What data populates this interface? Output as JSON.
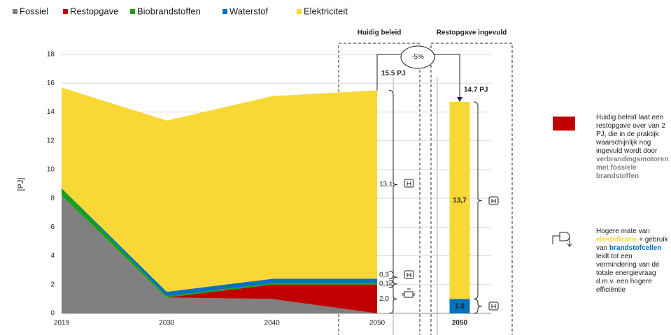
{
  "chart_data": [
    {
      "type": "area",
      "y_label": "[PJ]",
      "categories": [
        "2019",
        "2030",
        "2040",
        "2050"
      ],
      "ylim": [
        0,
        18
      ],
      "yticks": [
        0,
        2,
        4,
        6,
        8,
        10,
        12,
        14,
        16,
        18
      ],
      "grid": true,
      "legend": "top-left",
      "series": [
        {
          "name": "Fossiel",
          "color": "#808080",
          "values": [
            8.2,
            1.1,
            1.0,
            0.0
          ]
        },
        {
          "name": "Restopgave",
          "color": "#c00000",
          "values": [
            0.0,
            0.0,
            1.0,
            2.0
          ],
          "value_labels": [
            null,
            null,
            null,
            "2,0"
          ]
        },
        {
          "name": "Biobrandstoffen",
          "color": "#16a016",
          "values": [
            0.5,
            0.1,
            0.1,
            0.1
          ],
          "value_labels": [
            null,
            null,
            null,
            "0,1"
          ]
        },
        {
          "name": "Waterstof",
          "color": "#0070c0",
          "values": [
            0.0,
            0.3,
            0.3,
            0.3
          ],
          "value_labels": [
            null,
            null,
            null,
            "0,3"
          ]
        },
        {
          "name": "Elektriciteit",
          "color": "#f9d835",
          "values": [
            7.0,
            11.9,
            12.7,
            13.1
          ],
          "value_labels": [
            null,
            null,
            null,
            "13,1"
          ]
        }
      ],
      "panel_title": "Huidig beleid",
      "total_label": "15.5 PJ"
    },
    {
      "type": "stacked_bar",
      "categories": [
        "2050"
      ],
      "ylim": [
        0,
        18
      ],
      "series": [
        {
          "name": "Waterstof",
          "color": "#0070c0",
          "values": [
            1.0
          ],
          "value_labels": [
            "1,0"
          ]
        },
        {
          "name": "Elektriciteit",
          "color": "#f9d835",
          "values": [
            13.7
          ],
          "value_labels": [
            "13,7"
          ]
        }
      ],
      "panel_title": "Restopgave ingevuld",
      "total_label": "14.7 PJ",
      "change_label": "-5%"
    }
  ],
  "notes": [
    {
      "parts": [
        "Huidig beleid laat een restopgave over van 2 PJ, die in de praktijk waarschijnlijk nog ingevuld wordt door ",
        "verbrandingsmotoren met fossiele brandstoffen"
      ]
    },
    {
      "parts": [
        "Hogere mate van ",
        "elektrificatie",
        " + gebruik van ",
        "brandstofcellen",
        " leidt tot een vermindering van de totale energievraag d.m.v. een hogere efficiëntie"
      ]
    }
  ]
}
